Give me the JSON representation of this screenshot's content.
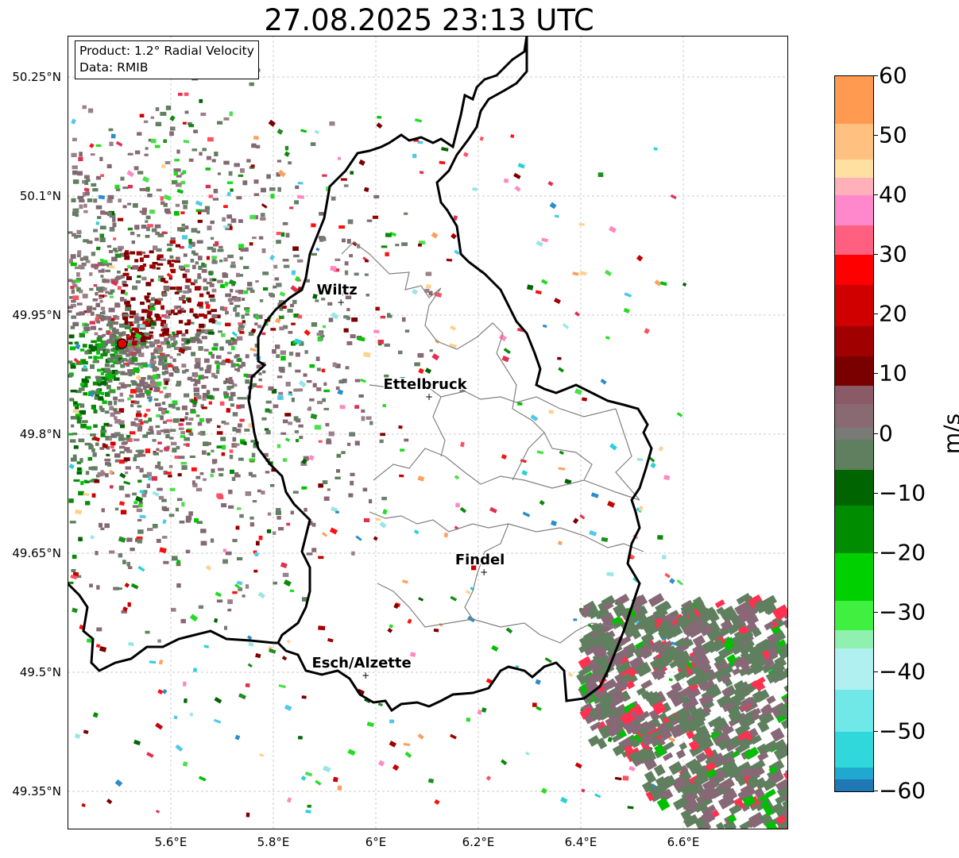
{
  "title": "27.08.2025 23:13 UTC",
  "info": {
    "product": "Product: 1.2° Radial Velocity",
    "data": "Data: RMIB"
  },
  "lat_ticks": [
    "50.25°N",
    "50.1°N",
    "49.95°N",
    "49.8°N",
    "49.65°N",
    "49.5°N",
    "49.35°N"
  ],
  "lon_ticks": [
    "5.6°E",
    "5.8°E",
    "6°E",
    "6.2°E",
    "6.4°E",
    "6.6°E"
  ],
  "colorbar": {
    "unit": "m/s",
    "ticks": [
      "60",
      "50",
      "40",
      "30",
      "20",
      "10",
      "0",
      "−10",
      "−20",
      "−30",
      "−40",
      "−50",
      "−60"
    ],
    "range": [
      -60,
      60
    ],
    "colors": {
      "very_negative": "#1f77b4",
      "strong_negative": "#30d8dc",
      "negative_light": "#aeeeee",
      "negative_mid": "#00e000",
      "negative_dark": "#006400",
      "near_zero_neg": "#5f7f5f",
      "near_zero_pos": "#8a6a72",
      "positive_dark": "#7a0000",
      "positive_mid": "#ff0000",
      "positive_light": "#ff88cc",
      "very_positive": "#ff9a50"
    }
  },
  "cities": [
    {
      "name": "Wiltz",
      "lat": 49.966,
      "lon": 5.932
    },
    {
      "name": "Ettelbruck",
      "lat": 49.847,
      "lon": 6.104
    },
    {
      "name": "Findel",
      "lat": 49.626,
      "lon": 6.211
    },
    {
      "name": "Esch/Alzette",
      "lat": 49.496,
      "lon": 5.98
    }
  ],
  "radar_site": {
    "lat": 49.914,
    "lon": 5.505
  }
}
